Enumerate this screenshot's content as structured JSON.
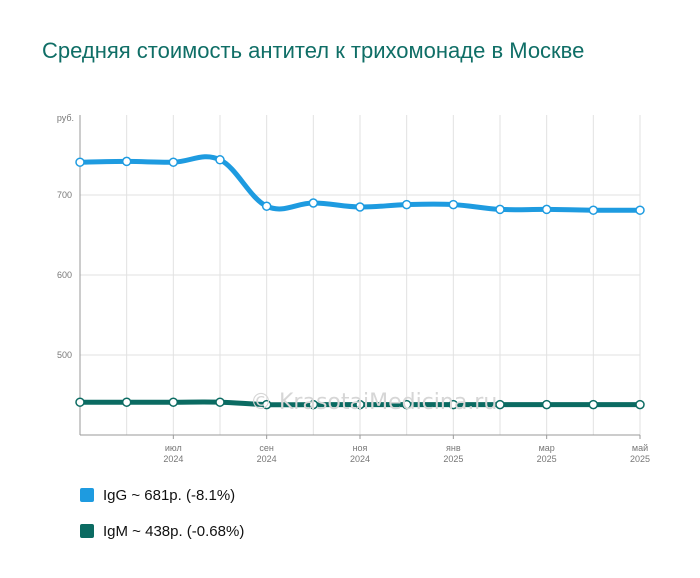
{
  "chart_data": {
    "type": "line",
    "title": "Средняя стоимость антител к трихомонаде в Москве",
    "ylabel": "руб.",
    "xlabel": "",
    "ylim": [
      400,
      800
    ],
    "yticks": [
      500,
      600,
      700
    ],
    "grid": true,
    "legend_position": "bottom-left",
    "x": [
      "2024-05",
      "2024-06",
      "2024-07",
      "2024-08",
      "2024-09",
      "2024-10",
      "2024-11",
      "2024-12",
      "2025-01",
      "2025-02",
      "2025-03",
      "2025-04",
      "2025-05"
    ],
    "xticks": [
      {
        "month": "июл",
        "year": "2024"
      },
      {
        "month": "сен",
        "year": "2024"
      },
      {
        "month": "ноя",
        "year": "2024"
      },
      {
        "month": "янв",
        "year": "2025"
      },
      {
        "month": "мар",
        "year": "2025"
      },
      {
        "month": "май",
        "year": "2025"
      }
    ],
    "series": [
      {
        "name": "IgG",
        "color": "#1e9be0",
        "values": [
          741,
          742,
          741,
          744,
          686,
          690,
          685,
          688,
          688,
          682,
          682,
          681,
          681
        ],
        "legend": "IgG ~ 681р. (-8.1%)"
      },
      {
        "name": "IgM",
        "color": "#0b6b62",
        "values": [
          441,
          441,
          441,
          441,
          438,
          438,
          438,
          438,
          438,
          438,
          438,
          438,
          438
        ],
        "legend": "IgM ~ 438р. (-0.68%)"
      }
    ],
    "watermark": "© KrasotaiMedicina.ru"
  }
}
